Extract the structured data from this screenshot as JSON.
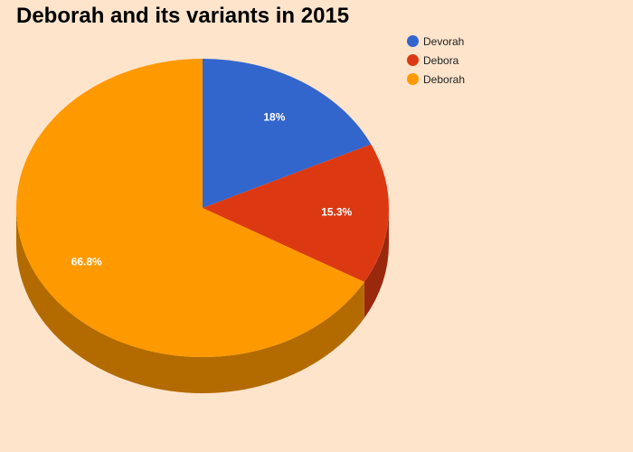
{
  "chart_data": {
    "type": "pie",
    "title": "Deborah and its variants in 2015",
    "legend_position": "top-right",
    "slices": [
      {
        "label": "Devorah",
        "value": 18,
        "value_label": "18%",
        "color": "#3366CC",
        "side_color": "#24478F"
      },
      {
        "label": "Debora",
        "value": 15.3,
        "value_label": "15.3%",
        "color": "#DC3912",
        "side_color": "#9A280D"
      },
      {
        "label": "Deborah",
        "value": 66.8,
        "value_label": "66.8%",
        "color": "#FF9900",
        "side_color": "#B36B00"
      }
    ]
  }
}
